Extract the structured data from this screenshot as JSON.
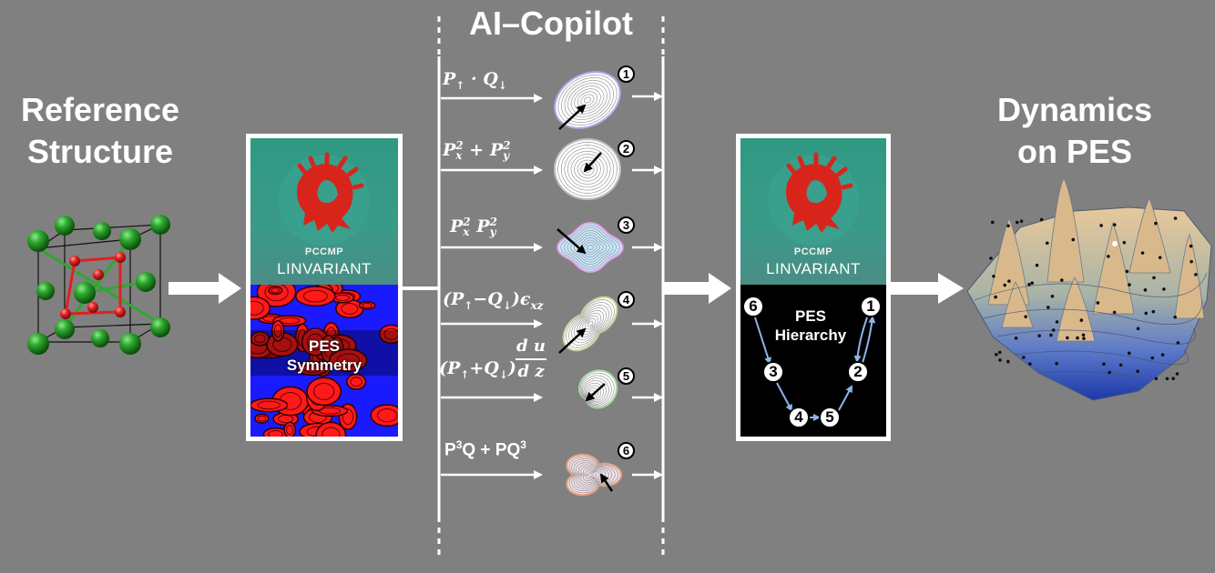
{
  "left_title": [
    "Reference",
    "Structure"
  ],
  "right_title": [
    "Dynamics",
    "on PES"
  ],
  "copilot_title": "AI–Copilot",
  "box1": {
    "brand_small": "PCCMP",
    "brand_large": "LINVARIANT",
    "panel_label": [
      "PES",
      "Symmetry"
    ]
  },
  "box2": {
    "brand_small": "PCCMP",
    "brand_large": "LINVARIANT",
    "panel_label": [
      "PES",
      "Hierarchy"
    ],
    "hierarchy_nodes": [
      "6",
      "1",
      "3",
      "2",
      "4",
      "5"
    ]
  },
  "invariants": [
    {
      "number": "1",
      "a": "P",
      "a_sub": "↑",
      "mid": " · ",
      "b": "Q",
      "b_sub": "↓"
    },
    {
      "number": "2",
      "a": "P",
      "a_sup": "2",
      "a_sub": "x",
      "mid": " + ",
      "b": "P",
      "b_sup": "2",
      "b_sub": "y"
    },
    {
      "number": "3",
      "a": "P",
      "a_sup": "2",
      "a_sub": "x",
      "mid": " ",
      "b": "P",
      "b_sup": "2",
      "b_sub": "y"
    },
    {
      "number": "4",
      "text": "(P",
      "sub1": "↑",
      "text2": "−Q",
      "sub2": "↓",
      "text3": ")ϵ",
      "sub3": "xz"
    },
    {
      "number": "5",
      "text": "(P",
      "sub1": "↑",
      "text2": "+Q",
      "sub2": "↓",
      "text3": ")",
      "frac_num": "d u",
      "frac_den": "d z"
    },
    {
      "number": "6",
      "p1": "P",
      "sup1": "3",
      "t1": "Q + PQ",
      "sup2": "3"
    }
  ],
  "colors": {
    "background": "#808080",
    "teal": "#3a9a88",
    "logo_red": "#d8251c",
    "atom_green": "#1f8a1f",
    "atom_red": "#e02020",
    "pes_red": "#ff1a1a",
    "pes_blue": "#1a1aff"
  }
}
